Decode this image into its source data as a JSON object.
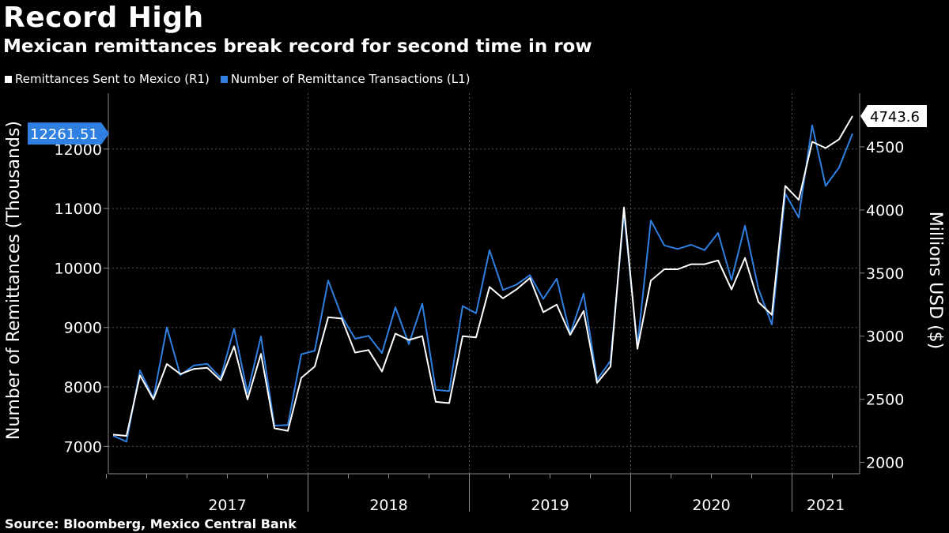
{
  "header": {
    "title": "Record High",
    "subtitle": "Mexican remittances break record for second time in row"
  },
  "legend": [
    {
      "label": "Remittances Sent to Mexico (R1)",
      "color": "#ffffff"
    },
    {
      "label": "Number of Remittance Transactions (L1)",
      "color": "#2f80e0"
    }
  ],
  "footer": {
    "source": "Source: Bloomberg, Mexico Central Bank"
  },
  "chart_data": {
    "type": "line",
    "x_start": "2016-10",
    "x_labels": [
      "2017",
      "2018",
      "2019",
      "2020",
      "2021"
    ],
    "left_axis": {
      "label": "Number of Remittances (Thousands)",
      "ticks": [
        7000,
        8000,
        9000,
        10000,
        11000,
        12000
      ],
      "range": [
        6540,
        12940
      ]
    },
    "right_axis": {
      "label": "Millions USD ($)",
      "ticks": [
        2000,
        2500,
        3000,
        3500,
        4000,
        4500
      ],
      "range": [
        1910,
        4925
      ]
    },
    "callouts": {
      "left": "12261.51",
      "right": "4743.6"
    },
    "grid": true,
    "series": [
      {
        "name": "Number of Remittance Transactions (L1)",
        "axis": "left",
        "color": "#2f80e0",
        "values": [
          7180,
          7080,
          8280,
          7810,
          9000,
          8200,
          8360,
          8390,
          8150,
          8980,
          7900,
          8850,
          7350,
          7360,
          8550,
          8610,
          9790,
          9190,
          8810,
          8860,
          8570,
          9340,
          8720,
          9400,
          7950,
          7930,
          9360,
          9240,
          10300,
          9630,
          9720,
          9880,
          9480,
          9820,
          8890,
          9570,
          8120,
          8440,
          10920,
          8690,
          10800,
          10380,
          10320,
          10390,
          10300,
          10590,
          9800,
          10710,
          9650,
          9050,
          11250,
          10850,
          12400,
          11380,
          11690,
          12261.51
        ]
      },
      {
        "name": "Remittances Sent to Mexico (R1)",
        "axis": "right",
        "color": "#ffffff",
        "values": [
          2220,
          2210,
          2690,
          2500,
          2780,
          2700,
          2740,
          2750,
          2650,
          2920,
          2500,
          2860,
          2270,
          2250,
          2670,
          2760,
          3150,
          3140,
          2870,
          2890,
          2720,
          3020,
          2970,
          3000,
          2480,
          2470,
          3000,
          2990,
          3390,
          3300,
          3370,
          3460,
          3190,
          3250,
          3010,
          3200,
          2630,
          2760,
          4020,
          2900,
          3440,
          3530,
          3530,
          3570,
          3570,
          3600,
          3370,
          3620,
          3270,
          3170,
          4190,
          4080,
          4540,
          4490,
          4560,
          4743.6
        ]
      }
    ]
  }
}
